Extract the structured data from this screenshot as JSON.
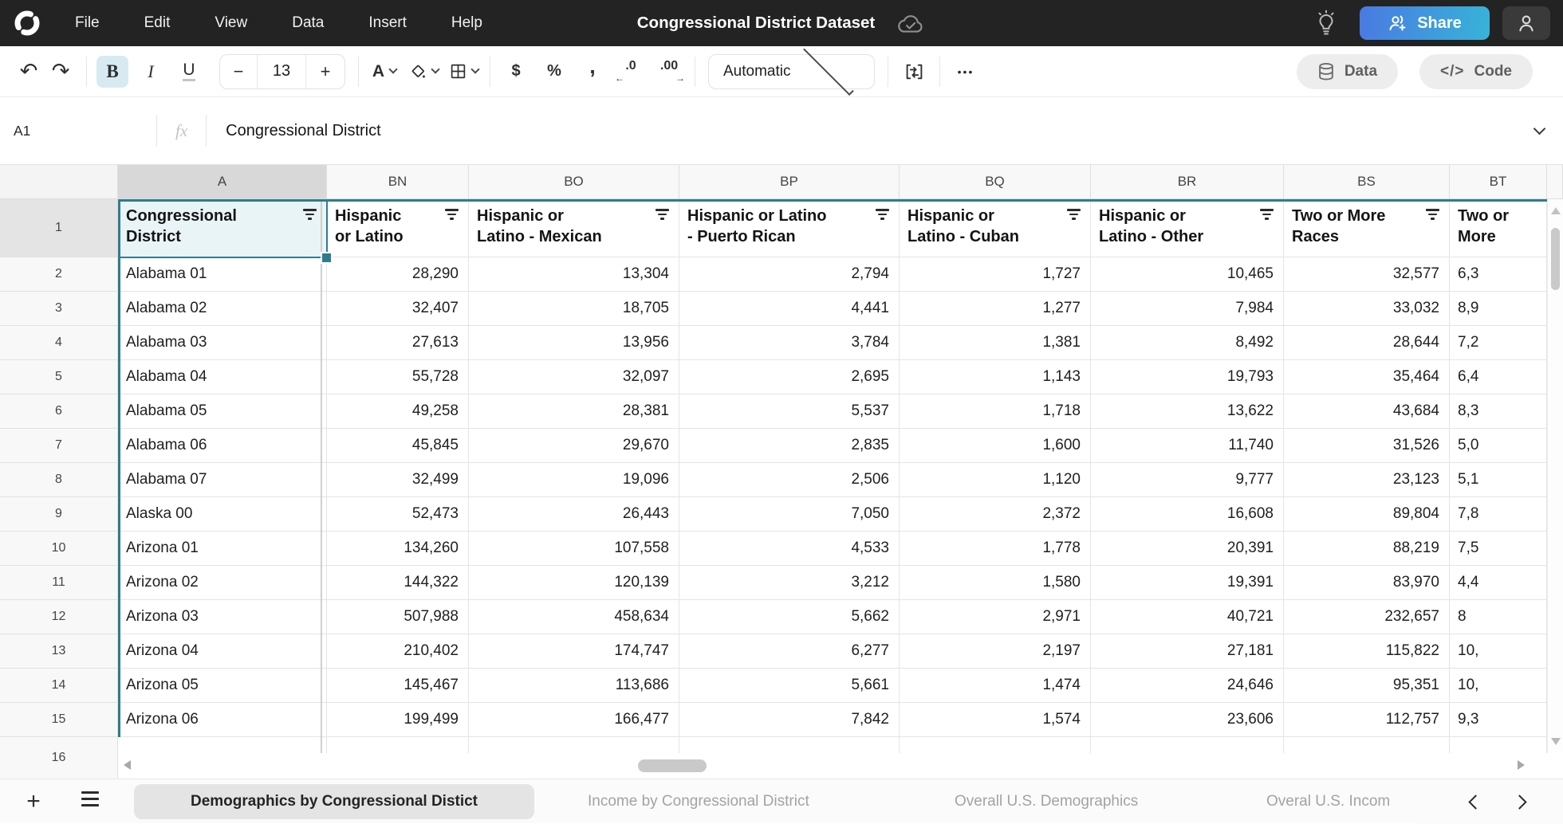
{
  "topbar": {
    "menu": [
      "File",
      "Edit",
      "View",
      "Data",
      "Insert",
      "Help"
    ],
    "title": "Congressional District Dataset",
    "share_label": "Share"
  },
  "toolbar": {
    "bold": "B",
    "italic": "I",
    "underline": "U",
    "font_size": "13",
    "decrease": "−",
    "increase": "+",
    "text_color_glyph": "A",
    "currency": "$",
    "percent": "%",
    "comma": ",",
    "dec_dec": ".0",
    "dec_dec_arrow": "←",
    "dec_inc": ".00",
    "dec_inc_arrow": "→",
    "number_format": "Automatic",
    "more": "•••",
    "data_label": "Data",
    "code_glyph": "</>",
    "code_label": "Code"
  },
  "icons": {
    "undo": "↶",
    "redo": "↷",
    "add_tab": "+"
  },
  "formula_bar": {
    "cell_ref": "A1",
    "fx_label": "fx",
    "value": "Congressional District"
  },
  "grid": {
    "first_row_number": "1",
    "partial_row_number": "16",
    "columns": [
      {
        "letter": "A",
        "header": "Congressional\nDistrict"
      },
      {
        "letter": "BN",
        "header": "Hispanic\nor Latino"
      },
      {
        "letter": "BO",
        "header": "Hispanic or\nLatino - Mexican"
      },
      {
        "letter": "BP",
        "header": "Hispanic or Latino\n- Puerto Rican"
      },
      {
        "letter": "BQ",
        "header": "Hispanic or\nLatino - Cuban"
      },
      {
        "letter": "BR",
        "header": "Hispanic or\nLatino - Other"
      },
      {
        "letter": "BS",
        "header": "Two or More\nRaces"
      },
      {
        "letter": "BT",
        "header": "Two or\nMore"
      }
    ],
    "rows": [
      [
        "2",
        "Alabama 01",
        "28,290",
        "13,304",
        "2,794",
        "1,727",
        "10,465",
        "32,577",
        "6,3"
      ],
      [
        "3",
        "Alabama 02",
        "32,407",
        "18,705",
        "4,441",
        "1,277",
        "7,984",
        "33,032",
        "8,9"
      ],
      [
        "4",
        "Alabama 03",
        "27,613",
        "13,956",
        "3,784",
        "1,381",
        "8,492",
        "28,644",
        "7,2"
      ],
      [
        "5",
        "Alabama 04",
        "55,728",
        "32,097",
        "2,695",
        "1,143",
        "19,793",
        "35,464",
        "6,4"
      ],
      [
        "6",
        "Alabama 05",
        "49,258",
        "28,381",
        "5,537",
        "1,718",
        "13,622",
        "43,684",
        "8,3"
      ],
      [
        "7",
        "Alabama 06",
        "45,845",
        "29,670",
        "2,835",
        "1,600",
        "11,740",
        "31,526",
        "5,0"
      ],
      [
        "8",
        "Alabama 07",
        "32,499",
        "19,096",
        "2,506",
        "1,120",
        "9,777",
        "23,123",
        "5,1"
      ],
      [
        "9",
        "Alaska 00",
        "52,473",
        "26,443",
        "7,050",
        "2,372",
        "16,608",
        "89,804",
        "7,8"
      ],
      [
        "10",
        "Arizona 01",
        "134,260",
        "107,558",
        "4,533",
        "1,778",
        "20,391",
        "88,219",
        "7,5"
      ],
      [
        "11",
        "Arizona 02",
        "144,322",
        "120,139",
        "3,212",
        "1,580",
        "19,391",
        "83,970",
        "4,4"
      ],
      [
        "12",
        "Arizona 03",
        "507,988",
        "458,634",
        "5,662",
        "2,971",
        "40,721",
        "232,657",
        "8"
      ],
      [
        "13",
        "Arizona 04",
        "210,402",
        "174,747",
        "6,277",
        "2,197",
        "27,181",
        "115,822",
        "10,"
      ],
      [
        "14",
        "Arizona 05",
        "145,467",
        "113,686",
        "5,661",
        "1,474",
        "24,646",
        "95,351",
        "10,"
      ],
      [
        "15",
        "Arizona 06",
        "199,499",
        "166,477",
        "7,842",
        "1,574",
        "23,606",
        "112,757",
        "9,3"
      ]
    ]
  },
  "sheet_tabs": {
    "active": "Demographics by Congressional Distict",
    "inactive": [
      "Income by Congressional District",
      "Overall U.S. Demographics",
      "Overal U.S. Incom"
    ]
  },
  "colors": {
    "accent_teal": "#2e7d8f",
    "selection_fill": "#e9f4f7",
    "active_format_bg": "#d7eaf2",
    "share_gradient_start": "#4a79e2",
    "share_gradient_end": "#37b4d8",
    "topbar_bg": "#232323"
  }
}
